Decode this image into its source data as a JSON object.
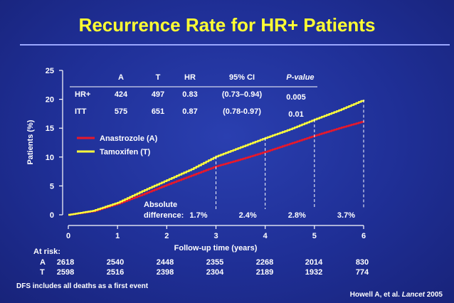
{
  "slide": {
    "title": "Recurrence Rate for HR+ Patients",
    "footnote": "DFS includes all deaths as a first event",
    "citation": "Howell A, et al. Lancet 2005"
  },
  "colors": {
    "title": "#ffff33",
    "anastrozole": "#e8182a",
    "tamoxifen": "#ffff3c",
    "text": "#ffffff"
  },
  "table": {
    "headers": [
      "A",
      "T",
      "HR",
      "95% CI",
      "P-value"
    ],
    "rows": [
      {
        "label": "HR+",
        "a": "424",
        "t": "497",
        "hr": "0.83",
        "ci": "(0.73–0.94)",
        "p": "0.005"
      },
      {
        "label": "ITT",
        "a": "575",
        "t": "651",
        "hr": "0.87",
        "ci": "(0.78-0.97)",
        "p": "0.01"
      }
    ]
  },
  "at_risk": {
    "label": "At risk:",
    "rows": [
      {
        "arm": "A",
        "values": [
          "2618",
          "2540",
          "2448",
          "2355",
          "2268",
          "2014",
          "830"
        ]
      },
      {
        "arm": "T",
        "values": [
          "2598",
          "2516",
          "2398",
          "2304",
          "2189",
          "1932",
          "774"
        ]
      }
    ]
  },
  "chart_data": {
    "type": "line",
    "xlabel": "Follow-up time (years)",
    "ylabel": "Patients (%)",
    "xlim": [
      0,
      6
    ],
    "ylim": [
      0,
      25
    ],
    "xticks": [
      0,
      1,
      2,
      3,
      4,
      5,
      6
    ],
    "yticks": [
      0,
      5,
      10,
      15,
      20,
      25
    ],
    "legend": "center-left",
    "series": [
      {
        "name": "Anastrozole (A)",
        "x": [
          0,
          0.5,
          1,
          1.5,
          2,
          2.5,
          3,
          3.5,
          4,
          4.5,
          5,
          5.5,
          6
        ],
        "values": [
          0,
          0.6,
          1.9,
          3.5,
          5.2,
          6.8,
          8.4,
          9.6,
          10.9,
          12.3,
          13.7,
          15.0,
          16.2
        ]
      },
      {
        "name": "Tamoxifen (T)",
        "x": [
          0,
          0.5,
          1,
          1.5,
          2,
          2.5,
          3,
          3.5,
          4,
          4.5,
          5,
          5.5,
          6
        ],
        "values": [
          0,
          0.7,
          2.1,
          4.1,
          6.0,
          7.9,
          10.1,
          11.7,
          13.3,
          14.8,
          16.5,
          18.1,
          19.9
        ]
      }
    ],
    "annotation_label": [
      "Absolute",
      "difference:"
    ],
    "differences": [
      {
        "x": 3,
        "label": "1.7%"
      },
      {
        "x": 4,
        "label": "2.4%"
      },
      {
        "x": 5,
        "label": "2.8%"
      },
      {
        "x": 6,
        "label": "3.7%"
      }
    ]
  }
}
